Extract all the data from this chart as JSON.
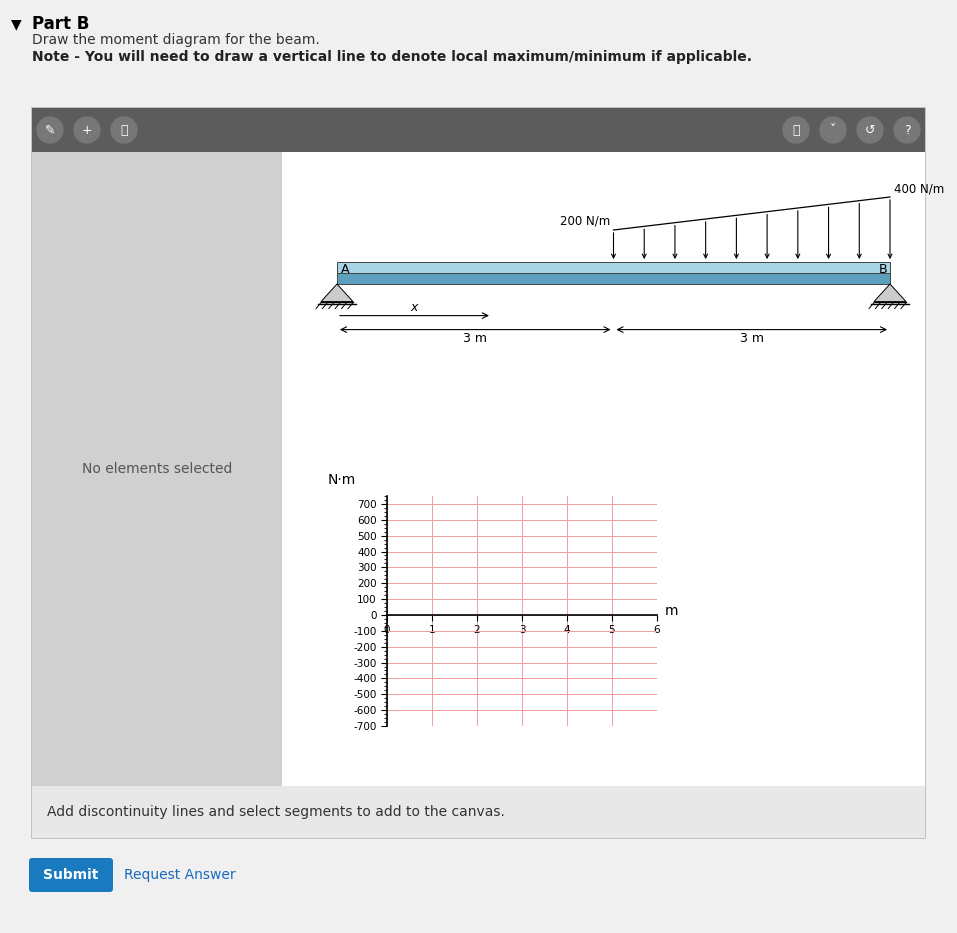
{
  "title_part": "Part B",
  "description1": "Draw the moment diagram for the beam.",
  "description2": "Note - You will need to draw a vertical line to denote local maximum/minimum if applicable.",
  "page_bg": "#f0f0f0",
  "toolbar_bg": "#5c5c5c",
  "panel_bg": "#d0d0d0",
  "canvas_bg": "#ffffff",
  "no_elements_text": "No elements selected",
  "bottom_text": "Add discontinuity lines and select segments to add to the canvas.",
  "submit_btn_color": "#1a7abf",
  "submit_text": "Submit",
  "request_answer_text": "Request Answer",
  "beam_load_left": "200 N/m",
  "beam_load_right": "400 N/m",
  "beam_label_A": "A",
  "beam_label_B": "B",
  "dim_x": "x",
  "dim_3m_left": "3 m",
  "dim_3m_right": "3 m",
  "ylabel": "N·m",
  "xlabel": "m",
  "yticks": [
    700,
    600,
    500,
    400,
    300,
    200,
    100,
    0,
    -100,
    -200,
    -300,
    -400,
    -500,
    -600,
    -700
  ],
  "xticks": [
    0,
    1,
    2,
    3,
    4,
    5,
    6
  ],
  "ylim": [
    -700,
    750
  ],
  "xlim": [
    0,
    6
  ],
  "grid_color": "#f0a0a0",
  "beam_color_top": "#a8d4e6",
  "beam_color_bottom": "#5da0be",
  "outer_border_color": "#bbbbbb"
}
